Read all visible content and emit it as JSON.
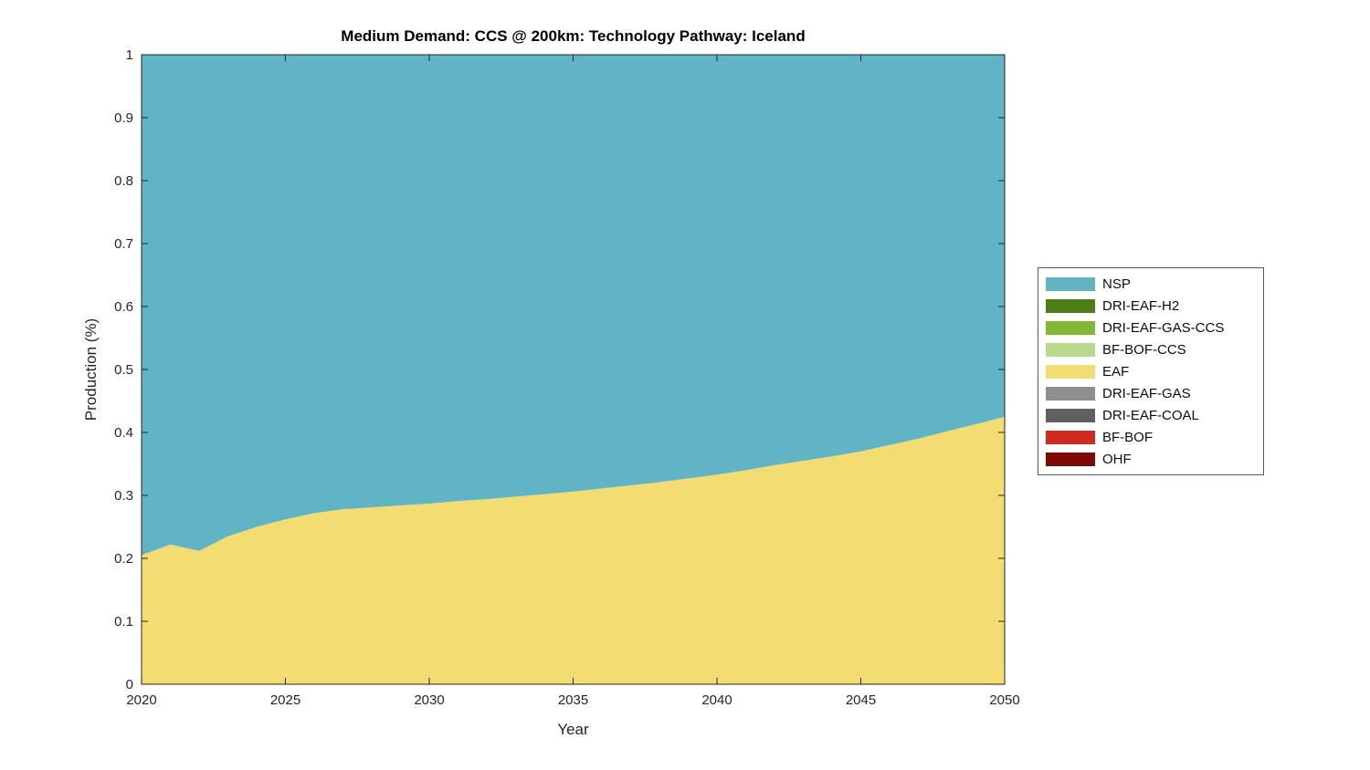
{
  "chart_data": {
    "type": "area",
    "title": "Medium Demand: CCS @ 200km: Technology Pathway: Iceland",
    "xlabel": "Year",
    "ylabel": "Production (%)",
    "xlim": [
      2020,
      2050
    ],
    "ylim": [
      0,
      1
    ],
    "grid": false,
    "legend_position": "right",
    "x": [
      2020,
      2021,
      2022,
      2023,
      2024,
      2025,
      2026,
      2027,
      2028,
      2029,
      2030,
      2031,
      2032,
      2033,
      2034,
      2035,
      2036,
      2037,
      2038,
      2039,
      2040,
      2041,
      2042,
      2043,
      2044,
      2045,
      2046,
      2047,
      2048,
      2049,
      2050
    ],
    "xticks": [
      2020,
      2025,
      2030,
      2035,
      2040,
      2045,
      2050
    ],
    "xtick_labels": [
      "2020",
      "2025",
      "2030",
      "2035",
      "2040",
      "2045",
      "2050"
    ],
    "yticks": [
      0,
      0.1,
      0.2,
      0.3,
      0.4,
      0.5,
      0.6,
      0.7,
      0.8,
      0.9,
      1
    ],
    "ytick_labels": [
      "0",
      "0.1",
      "0.2",
      "0.3",
      "0.4",
      "0.5",
      "0.6",
      "0.7",
      "0.8",
      "0.9",
      "1"
    ],
    "stack_order_bottom_to_top": [
      "OHF",
      "BF-BOF",
      "DRI-EAF-COAL",
      "DRI-EAF-GAS",
      "EAF",
      "BF-BOF-CCS",
      "DRI-EAF-GAS-CCS",
      "DRI-EAF-H2",
      "NSP"
    ],
    "legend_order": [
      "NSP",
      "DRI-EAF-H2",
      "DRI-EAF-GAS-CCS",
      "BF-BOF-CCS",
      "EAF",
      "DRI-EAF-GAS",
      "DRI-EAF-COAL",
      "BF-BOF",
      "OHF"
    ],
    "series": [
      {
        "name": "NSP",
        "color": "#60b4c4",
        "values": [
          0.795,
          0.778,
          0.788,
          0.765,
          0.75,
          0.738,
          0.728,
          0.722,
          0.719,
          0.716,
          0.713,
          0.709,
          0.706,
          0.702,
          0.698,
          0.694,
          0.689,
          0.684,
          0.679,
          0.673,
          0.667,
          0.66,
          0.652,
          0.645,
          0.638,
          0.63,
          0.62,
          0.61,
          0.598,
          0.587,
          0.575
        ]
      },
      {
        "name": "DRI-EAF-H2",
        "color": "#4d7d17",
        "values": [
          0,
          0,
          0,
          0,
          0,
          0,
          0,
          0,
          0,
          0,
          0,
          0,
          0,
          0,
          0,
          0,
          0,
          0,
          0,
          0,
          0,
          0,
          0,
          0,
          0,
          0,
          0,
          0,
          0,
          0,
          0
        ]
      },
      {
        "name": "DRI-EAF-GAS-CCS",
        "color": "#83b837",
        "values": [
          0,
          0,
          0,
          0,
          0,
          0,
          0,
          0,
          0,
          0,
          0,
          0,
          0,
          0,
          0,
          0,
          0,
          0,
          0,
          0,
          0,
          0,
          0,
          0,
          0,
          0,
          0,
          0,
          0,
          0,
          0
        ]
      },
      {
        "name": "BF-BOF-CCS",
        "color": "#b9d98c",
        "values": [
          0,
          0,
          0,
          0,
          0,
          0,
          0,
          0,
          0,
          0,
          0,
          0,
          0,
          0,
          0,
          0,
          0,
          0,
          0,
          0,
          0,
          0,
          0,
          0,
          0,
          0,
          0,
          0,
          0,
          0,
          0
        ]
      },
      {
        "name": "EAF",
        "color": "#f3dd72",
        "values": [
          0.205,
          0.222,
          0.212,
          0.235,
          0.25,
          0.262,
          0.272,
          0.278,
          0.281,
          0.284,
          0.287,
          0.291,
          0.294,
          0.298,
          0.302,
          0.306,
          0.311,
          0.316,
          0.321,
          0.327,
          0.333,
          0.34,
          0.348,
          0.355,
          0.362,
          0.37,
          0.38,
          0.39,
          0.402,
          0.413,
          0.425
        ]
      },
      {
        "name": "DRI-EAF-GAS",
        "color": "#8f8f8f",
        "values": [
          0,
          0,
          0,
          0,
          0,
          0,
          0,
          0,
          0,
          0,
          0,
          0,
          0,
          0,
          0,
          0,
          0,
          0,
          0,
          0,
          0,
          0,
          0,
          0,
          0,
          0,
          0,
          0,
          0,
          0,
          0
        ]
      },
      {
        "name": "DRI-EAF-COAL",
        "color": "#606060",
        "values": [
          0,
          0,
          0,
          0,
          0,
          0,
          0,
          0,
          0,
          0,
          0,
          0,
          0,
          0,
          0,
          0,
          0,
          0,
          0,
          0,
          0,
          0,
          0,
          0,
          0,
          0,
          0,
          0,
          0,
          0,
          0
        ]
      },
      {
        "name": "BF-BOF",
        "color": "#cf2b23",
        "values": [
          0,
          0,
          0,
          0,
          0,
          0,
          0,
          0,
          0,
          0,
          0,
          0,
          0,
          0,
          0,
          0,
          0,
          0,
          0,
          0,
          0,
          0,
          0,
          0,
          0,
          0,
          0,
          0,
          0,
          0,
          0
        ]
      },
      {
        "name": "OHF",
        "color": "#7c0a02",
        "values": [
          0,
          0,
          0,
          0,
          0,
          0,
          0,
          0,
          0,
          0,
          0,
          0,
          0,
          0,
          0,
          0,
          0,
          0,
          0,
          0,
          0,
          0,
          0,
          0,
          0,
          0,
          0,
          0,
          0,
          0,
          0
        ]
      }
    ],
    "axis_color": "#262626"
  }
}
